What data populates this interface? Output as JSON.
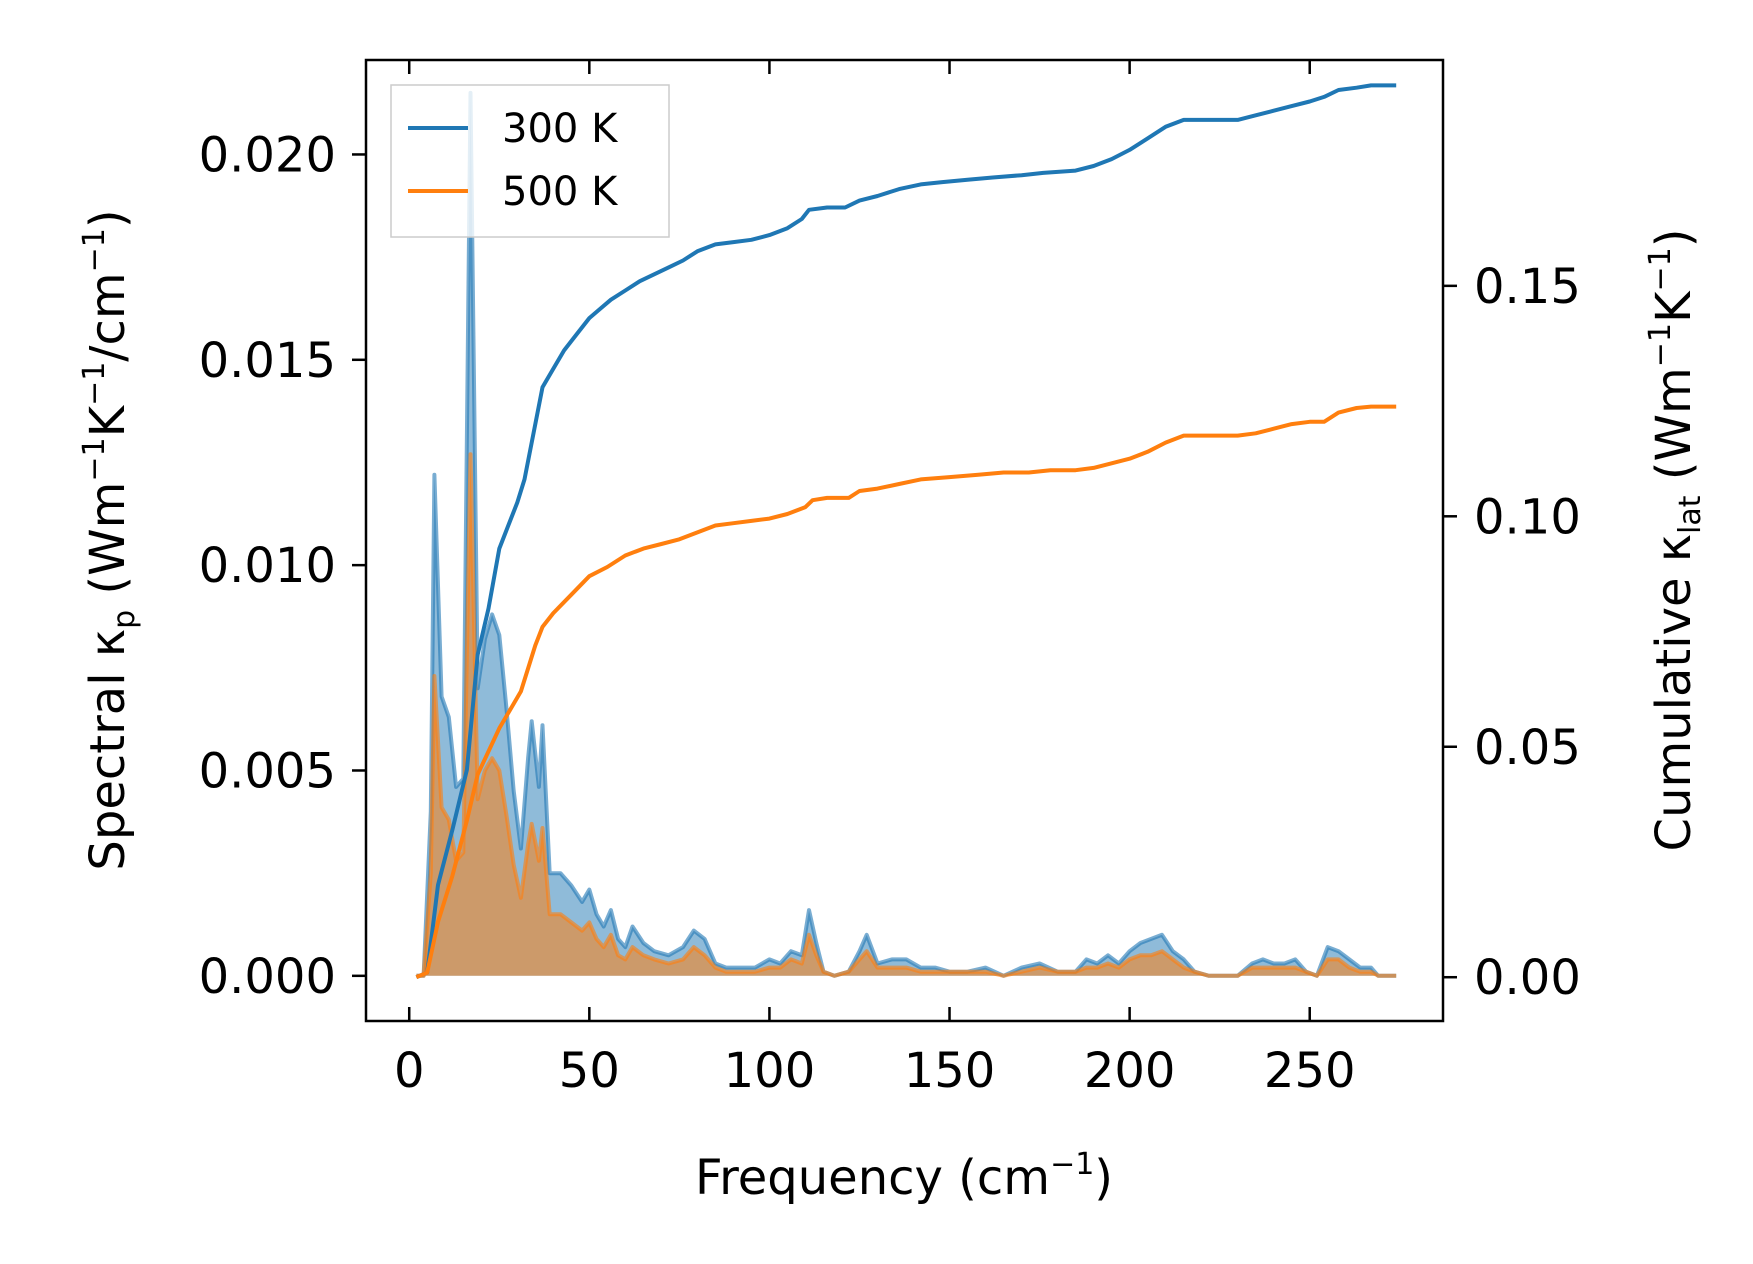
{
  "chart_data": {
    "type": "line",
    "xlabel": "Frequency (cm⁻¹)",
    "ylabel_left": "Spectral κₚ (Wm⁻¹K⁻¹/cm⁻¹)",
    "ylabel_right": "Cumulative κ_lat (Wm⁻¹K⁻¹)",
    "xlim": [
      -12,
      287
    ],
    "ylim_left": [
      -0.0011,
      0.0223
    ],
    "ylim_right": [
      -0.0095,
      0.199
    ],
    "xticks": [
      0,
      50,
      100,
      150,
      200,
      250
    ],
    "xtick_labels": [
      "0",
      "50",
      "100",
      "150",
      "200",
      "250"
    ],
    "yticks_left": [
      0.0,
      0.005,
      0.01,
      0.015,
      0.02
    ],
    "ytick_labels_left": [
      "0.000",
      "0.005",
      "0.010",
      "0.015",
      "0.020"
    ],
    "yticks_right": [
      0.0,
      0.05,
      0.1,
      0.15
    ],
    "ytick_labels_right": [
      "0.00",
      "0.05",
      "0.10",
      "0.15"
    ],
    "legend": {
      "position": "upper-left",
      "entries": [
        "300 K",
        "500 K"
      ]
    },
    "series": [
      {
        "name": "300 K",
        "color": "#1f77b4",
        "spectral": [
          [
            2,
            0
          ],
          [
            4,
            0
          ],
          [
            6,
            0.004
          ],
          [
            7,
            0.0122
          ],
          [
            9,
            0.0068
          ],
          [
            11,
            0.0063
          ],
          [
            13,
            0.0046
          ],
          [
            15,
            0.0048
          ],
          [
            17,
            0.0215
          ],
          [
            19,
            0.007
          ],
          [
            21,
            0.0082
          ],
          [
            23,
            0.0088
          ],
          [
            25,
            0.0083
          ],
          [
            27,
            0.0065
          ],
          [
            29,
            0.0045
          ],
          [
            31,
            0.0031
          ],
          [
            33,
            0.0053
          ],
          [
            34,
            0.0062
          ],
          [
            36,
            0.0046
          ],
          [
            37,
            0.0061
          ],
          [
            39,
            0.0025
          ],
          [
            42,
            0.0025
          ],
          [
            45,
            0.0022
          ],
          [
            48,
            0.0018
          ],
          [
            50,
            0.0021
          ],
          [
            52,
            0.0015
          ],
          [
            54,
            0.0012
          ],
          [
            56,
            0.0016
          ],
          [
            58,
            0.0009
          ],
          [
            60,
            0.0007
          ],
          [
            62,
            0.0012
          ],
          [
            65,
            0.0008
          ],
          [
            68,
            0.0006
          ],
          [
            72,
            0.0005
          ],
          [
            76,
            0.0007
          ],
          [
            79,
            0.0011
          ],
          [
            82,
            0.0009
          ],
          [
            85,
            0.0003
          ],
          [
            88,
            0.0002
          ],
          [
            92,
            0.0002
          ],
          [
            96,
            0.0002
          ],
          [
            100,
            0.0004
          ],
          [
            103,
            0.0003
          ],
          [
            106,
            0.0006
          ],
          [
            109,
            0.0005
          ],
          [
            111,
            0.0016
          ],
          [
            113,
            0.0008
          ],
          [
            115,
            0.0001
          ],
          [
            118,
            0
          ],
          [
            122,
            0.0001
          ],
          [
            125,
            0.0006
          ],
          [
            127,
            0.001
          ],
          [
            130,
            0.0003
          ],
          [
            134,
            0.0004
          ],
          [
            138,
            0.0004
          ],
          [
            142,
            0.0002
          ],
          [
            146,
            0.0002
          ],
          [
            150,
            0.0001
          ],
          [
            155,
            0.0001
          ],
          [
            160,
            0.0002
          ],
          [
            165,
            0
          ],
          [
            170,
            0.0002
          ],
          [
            175,
            0.0003
          ],
          [
            180,
            0.0001
          ],
          [
            185,
            0.0001
          ],
          [
            188,
            0.0004
          ],
          [
            191,
            0.0003
          ],
          [
            194,
            0.0005
          ],
          [
            197,
            0.0003
          ],
          [
            200,
            0.0006
          ],
          [
            203,
            0.0008
          ],
          [
            206,
            0.0009
          ],
          [
            209,
            0.001
          ],
          [
            212,
            0.0006
          ],
          [
            215,
            0.0004
          ],
          [
            218,
            0.0001
          ],
          [
            222,
            0
          ],
          [
            226,
            0
          ],
          [
            230,
            0
          ],
          [
            234,
            0.0003
          ],
          [
            237,
            0.0004
          ],
          [
            240,
            0.0003
          ],
          [
            243,
            0.0003
          ],
          [
            246,
            0.0004
          ],
          [
            249,
            0.0001
          ],
          [
            252,
            0
          ],
          [
            255,
            0.0007
          ],
          [
            258,
            0.0006
          ],
          [
            261,
            0.0004
          ],
          [
            264,
            0.0002
          ],
          [
            267,
            0.0002
          ],
          [
            269,
            0
          ],
          [
            274,
            0
          ]
        ],
        "cumulative": [
          [
            2,
            0
          ],
          [
            5,
            0.001
          ],
          [
            8,
            0.02
          ],
          [
            12,
            0.032
          ],
          [
            16,
            0.045
          ],
          [
            19,
            0.07
          ],
          [
            22,
            0.08
          ],
          [
            25,
            0.093
          ],
          [
            28,
            0.099
          ],
          [
            30,
            0.103
          ],
          [
            32,
            0.108
          ],
          [
            35,
            0.12
          ],
          [
            37,
            0.128
          ],
          [
            40,
            0.132
          ],
          [
            43,
            0.136
          ],
          [
            46,
            0.139
          ],
          [
            50,
            0.143
          ],
          [
            53,
            0.145
          ],
          [
            56,
            0.147
          ],
          [
            60,
            0.149
          ],
          [
            64,
            0.151
          ],
          [
            68,
            0.1525
          ],
          [
            72,
            0.154
          ],
          [
            76,
            0.1555
          ],
          [
            80,
            0.1575
          ],
          [
            85,
            0.159
          ],
          [
            90,
            0.1595
          ],
          [
            95,
            0.16
          ],
          [
            100,
            0.161
          ],
          [
            105,
            0.1625
          ],
          [
            109,
            0.1645
          ],
          [
            111,
            0.1665
          ],
          [
            116,
            0.167
          ],
          [
            121,
            0.167
          ],
          [
            125,
            0.1685
          ],
          [
            130,
            0.1695
          ],
          [
            136,
            0.171
          ],
          [
            142,
            0.172
          ],
          [
            148,
            0.1725
          ],
          [
            155,
            0.173
          ],
          [
            162,
            0.1735
          ],
          [
            170,
            0.174
          ],
          [
            176,
            0.1745
          ],
          [
            185,
            0.175
          ],
          [
            190,
            0.176
          ],
          [
            195,
            0.1775
          ],
          [
            200,
            0.1795
          ],
          [
            205,
            0.182
          ],
          [
            210,
            0.1845
          ],
          [
            215,
            0.186
          ],
          [
            220,
            0.186
          ],
          [
            225,
            0.186
          ],
          [
            230,
            0.186
          ],
          [
            235,
            0.187
          ],
          [
            240,
            0.188
          ],
          [
            245,
            0.189
          ],
          [
            250,
            0.19
          ],
          [
            254,
            0.191
          ],
          [
            258,
            0.1925
          ],
          [
            263,
            0.193
          ],
          [
            267,
            0.1935
          ],
          [
            274,
            0.1935
          ]
        ]
      },
      {
        "name": "500 K",
        "color": "#ff7f0e",
        "spectral": [
          [
            2,
            0
          ],
          [
            4,
            0
          ],
          [
            6,
            0.0025
          ],
          [
            7,
            0.0073
          ],
          [
            9,
            0.0041
          ],
          [
            11,
            0.0038
          ],
          [
            13,
            0.0028
          ],
          [
            15,
            0.003
          ],
          [
            17,
            0.0127
          ],
          [
            19,
            0.0043
          ],
          [
            21,
            0.005
          ],
          [
            23,
            0.0053
          ],
          [
            25,
            0.005
          ],
          [
            27,
            0.0039
          ],
          [
            29,
            0.0027
          ],
          [
            31,
            0.0019
          ],
          [
            33,
            0.0032
          ],
          [
            34,
            0.0037
          ],
          [
            36,
            0.0028
          ],
          [
            37,
            0.0036
          ],
          [
            39,
            0.0015
          ],
          [
            42,
            0.0015
          ],
          [
            45,
            0.0013
          ],
          [
            48,
            0.0011
          ],
          [
            50,
            0.0013
          ],
          [
            52,
            0.0009
          ],
          [
            54,
            0.0007
          ],
          [
            56,
            0.001
          ],
          [
            58,
            0.0005
          ],
          [
            60,
            0.0004
          ],
          [
            62,
            0.0007
          ],
          [
            65,
            0.0005
          ],
          [
            68,
            0.0004
          ],
          [
            72,
            0.0003
          ],
          [
            76,
            0.0004
          ],
          [
            79,
            0.0007
          ],
          [
            82,
            0.0005
          ],
          [
            85,
            0.0002
          ],
          [
            88,
            0.0001
          ],
          [
            92,
            0.0001
          ],
          [
            96,
            0.0001
          ],
          [
            100,
            0.0002
          ],
          [
            103,
            0.0002
          ],
          [
            106,
            0.0004
          ],
          [
            109,
            0.0003
          ],
          [
            111,
            0.001
          ],
          [
            113,
            0.0005
          ],
          [
            115,
            0.0001
          ],
          [
            118,
            0
          ],
          [
            122,
            0.0001
          ],
          [
            125,
            0.0004
          ],
          [
            127,
            0.0006
          ],
          [
            130,
            0.0002
          ],
          [
            134,
            0.0002
          ],
          [
            138,
            0.0002
          ],
          [
            142,
            0.0001
          ],
          [
            146,
            0.0001
          ],
          [
            150,
            0.0001
          ],
          [
            155,
            0.0001
          ],
          [
            160,
            0.0001
          ],
          [
            165,
            0
          ],
          [
            170,
            0.0001
          ],
          [
            175,
            0.0002
          ],
          [
            180,
            0.0001
          ],
          [
            185,
            0.0001
          ],
          [
            188,
            0.0002
          ],
          [
            191,
            0.0002
          ],
          [
            194,
            0.0003
          ],
          [
            197,
            0.0002
          ],
          [
            200,
            0.0004
          ],
          [
            203,
            0.0005
          ],
          [
            206,
            0.0005
          ],
          [
            209,
            0.0006
          ],
          [
            212,
            0.0004
          ],
          [
            215,
            0.0002
          ],
          [
            218,
            0.0001
          ],
          [
            222,
            0
          ],
          [
            226,
            0
          ],
          [
            230,
            0
          ],
          [
            234,
            0.0002
          ],
          [
            237,
            0.0002
          ],
          [
            240,
            0.0002
          ],
          [
            243,
            0.0002
          ],
          [
            246,
            0.0002
          ],
          [
            249,
            0.0001
          ],
          [
            252,
            0
          ],
          [
            255,
            0.0004
          ],
          [
            258,
            0.0004
          ],
          [
            261,
            0.0002
          ],
          [
            264,
            0.0001
          ],
          [
            267,
            0.0001
          ],
          [
            269,
            0
          ],
          [
            274,
            0
          ]
        ],
        "cumulative": [
          [
            2,
            0
          ],
          [
            5,
            0.001
          ],
          [
            8,
            0.012
          ],
          [
            12,
            0.022
          ],
          [
            16,
            0.034
          ],
          [
            19,
            0.044
          ],
          [
            22,
            0.049
          ],
          [
            25,
            0.054
          ],
          [
            28,
            0.058
          ],
          [
            31,
            0.062
          ],
          [
            35,
            0.072
          ],
          [
            37,
            0.076
          ],
          [
            40,
            0.079
          ],
          [
            45,
            0.083
          ],
          [
            50,
            0.087
          ],
          [
            55,
            0.089
          ],
          [
            60,
            0.0915
          ],
          [
            65,
            0.093
          ],
          [
            70,
            0.094
          ],
          [
            75,
            0.095
          ],
          [
            80,
            0.0965
          ],
          [
            85,
            0.098
          ],
          [
            90,
            0.0985
          ],
          [
            95,
            0.099
          ],
          [
            100,
            0.0995
          ],
          [
            105,
            0.1005
          ],
          [
            110,
            0.102
          ],
          [
            112,
            0.1035
          ],
          [
            116,
            0.104
          ],
          [
            122,
            0.104
          ],
          [
            125,
            0.1055
          ],
          [
            130,
            0.106
          ],
          [
            136,
            0.107
          ],
          [
            142,
            0.108
          ],
          [
            150,
            0.1085
          ],
          [
            158,
            0.109
          ],
          [
            165,
            0.1095
          ],
          [
            172,
            0.1095
          ],
          [
            178,
            0.11
          ],
          [
            185,
            0.11
          ],
          [
            190,
            0.1105
          ],
          [
            195,
            0.1115
          ],
          [
            200,
            0.1125
          ],
          [
            205,
            0.114
          ],
          [
            210,
            0.116
          ],
          [
            215,
            0.1175
          ],
          [
            220,
            0.1175
          ],
          [
            225,
            0.1175
          ],
          [
            230,
            0.1175
          ],
          [
            235,
            0.118
          ],
          [
            240,
            0.119
          ],
          [
            245,
            0.12
          ],
          [
            250,
            0.1205
          ],
          [
            254,
            0.1205
          ],
          [
            258,
            0.1225
          ],
          [
            263,
            0.1235
          ],
          [
            267,
            0.1238
          ],
          [
            274,
            0.1238
          ]
        ]
      }
    ]
  }
}
